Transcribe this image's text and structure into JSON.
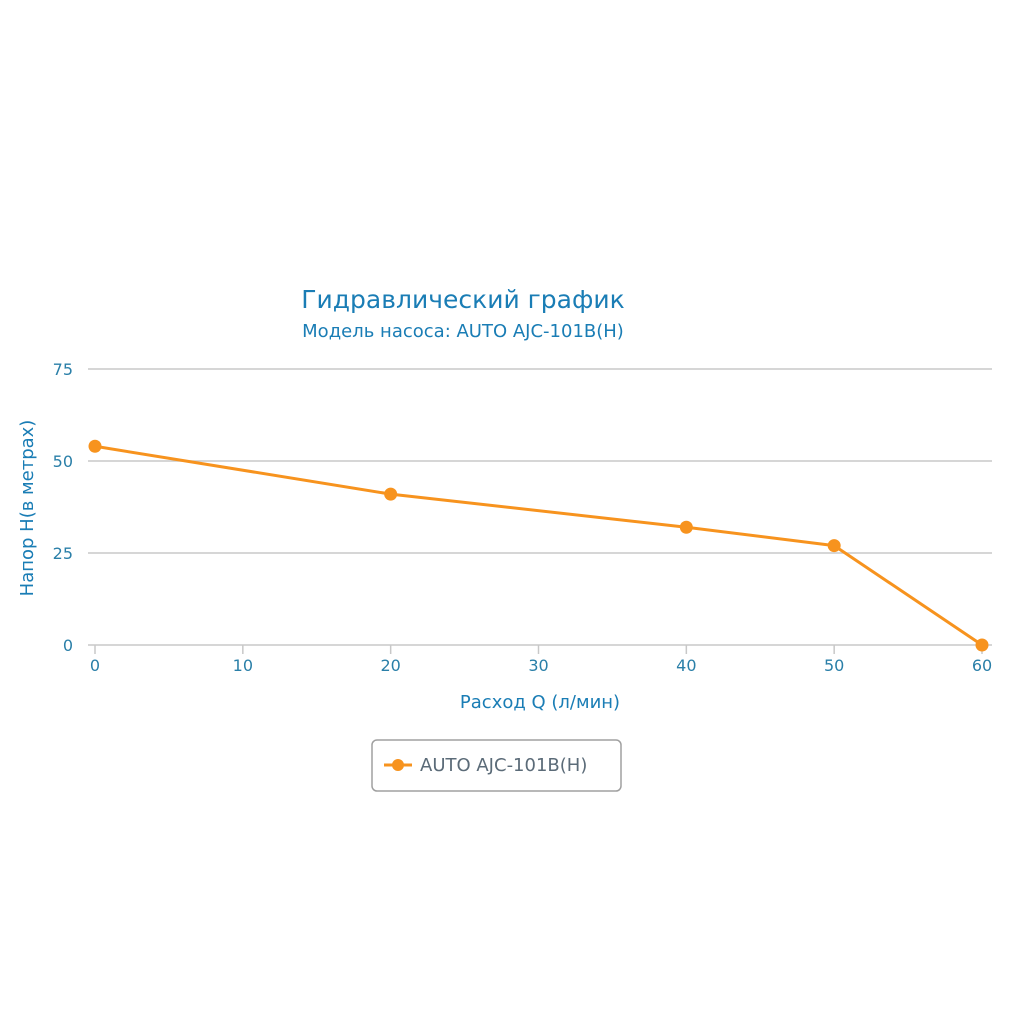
{
  "colors": {
    "series": "#f7931e",
    "text": "#1a7db5",
    "grid": "#c8c8c8",
    "legend_border": "#a0a0a0"
  },
  "chart_data": {
    "type": "line",
    "title": "Гидравлический график",
    "subtitle": "Модель насоса: AUTO AJC-101B(H)",
    "xlabel": "Расход Q (л/мин)",
    "ylabel": "Напор H(в метрах)",
    "xlim": [
      0,
      60
    ],
    "ylim": [
      0,
      75
    ],
    "x_ticks": [
      "0",
      "10",
      "20",
      "30",
      "40",
      "50",
      "60"
    ],
    "y_ticks": [
      "0",
      "25",
      "50",
      "75"
    ],
    "grid": "horizontal",
    "legend_position": "bottom-center",
    "series": [
      {
        "name": "AUTO AJC-101B(H)",
        "x": [
          0,
          20,
          40,
          50,
          60
        ],
        "y": [
          54,
          41,
          32,
          27,
          0
        ]
      }
    ]
  }
}
